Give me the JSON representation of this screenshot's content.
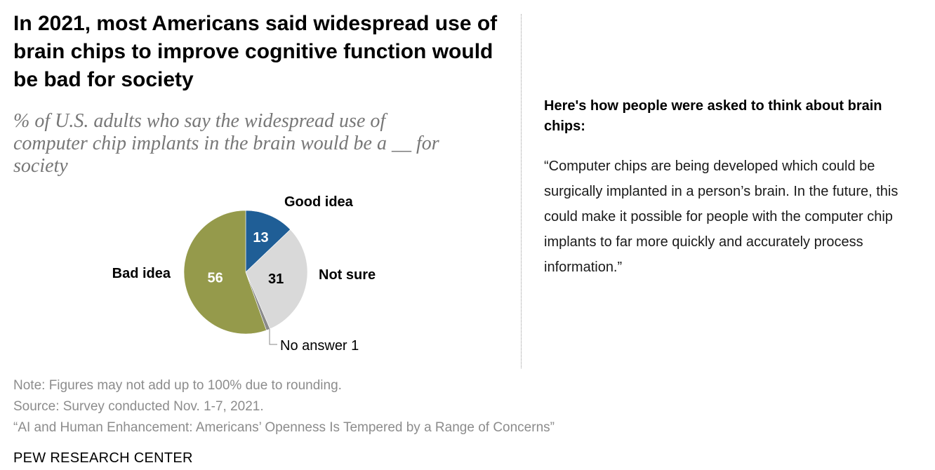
{
  "title": "In 2021, most Americans said widespread use of brain chips to improve cognitive function would be bad for society",
  "subtitle": "% of U.S. adults who say the widespread use of computer chip implants in the brain would be a __ for society",
  "chart_data": {
    "type": "pie",
    "title": "In 2021, most Americans said widespread use of brain chips to improve cognitive function would be bad for society",
    "subtitle": "% of U.S. adults who say the widespread use of computer chip implants in the brain would be a __ for society",
    "slices": [
      {
        "label": "Good idea",
        "value": 13,
        "value_label": "13",
        "color": "#1f5e96"
      },
      {
        "label": "Not sure",
        "value": 31,
        "value_label": "31",
        "color": "#d9d9d9"
      },
      {
        "label": "No answer",
        "value": 1,
        "value_label": "1",
        "color": "#8a8a8a"
      },
      {
        "label": "Bad idea",
        "value": 56,
        "value_label": "56",
        "color": "#959a4b"
      }
    ],
    "start": "12 o'clock",
    "direction": "clockwise"
  },
  "labels": {
    "good_idea": "Good idea",
    "not_sure": "Not sure",
    "bad_idea": "Bad idea",
    "no_answer": "No answer 1"
  },
  "sidebar": {
    "heading": "Here's how people were asked to think about brain chips:",
    "quote": "“Computer chips are being developed which could be surgically implanted in a person’s brain. In the future, this could make it possible for people with the computer chip implants to far more quickly and accurately process information.”"
  },
  "footer": {
    "note": "Note: Figures may not add up to 100% due to rounding.",
    "source": "Source: Survey conducted Nov. 1-7, 2021.",
    "report": "“AI and Human Enhancement: Americans’ Openness Is Tempered by a Range of Concerns”",
    "org": "PEW RESEARCH CENTER"
  }
}
